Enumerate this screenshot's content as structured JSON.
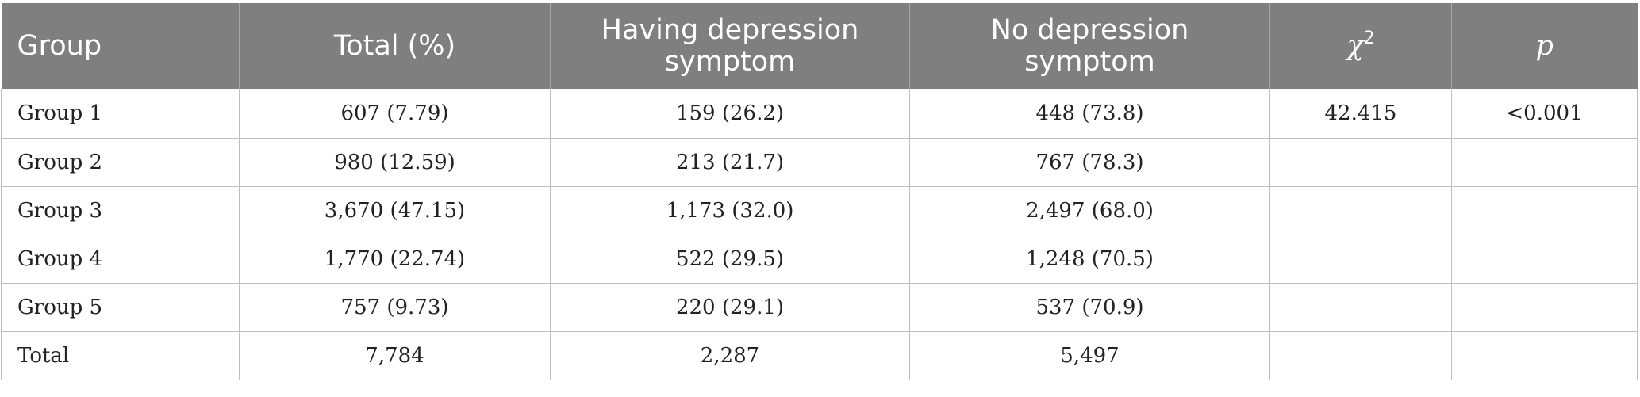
{
  "table": {
    "headers": {
      "group": "Group",
      "total": "Total (%)",
      "having": "Having depression symptom",
      "no": "No depression symptom",
      "chi_base": "χ",
      "chi_sup": "2",
      "p": "p"
    },
    "rows": [
      [
        "Group 1",
        "607 (7.79)",
        "159 (26.2)",
        "448 (73.8)",
        "42.415",
        "<0.001"
      ],
      [
        "Group 2",
        "980 (12.59)",
        "213 (21.7)",
        "767 (78.3)",
        "",
        ""
      ],
      [
        "Group 3",
        "3,670 (47.15)",
        "1,173 (32.0)",
        "2,497 (68.0)",
        "",
        ""
      ],
      [
        "Group 4",
        "1,770 (22.74)",
        "522 (29.5)",
        "1,248 (70.5)",
        "",
        ""
      ],
      [
        "Group 5",
        "757 (9.73)",
        "220 (29.1)",
        "537 (70.9)",
        "",
        ""
      ],
      [
        "Total",
        "7,784",
        "2,287",
        "5,497",
        "",
        ""
      ]
    ]
  }
}
